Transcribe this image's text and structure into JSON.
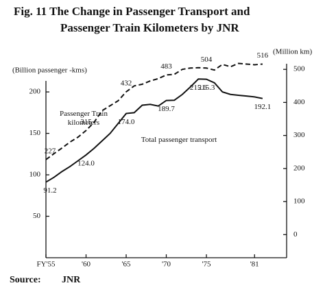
{
  "chart_data": {
    "type": "line",
    "title_lines": [
      "Fig. 11  The Change in Passenger Transport and",
      "Passenger Train Kilometers by JNR"
    ],
    "y_label": "(Billion passenger -kms)",
    "y2_label": "(Million km)",
    "source_label": "Source:",
    "source": "JNR",
    "x": [
      1955,
      1956,
      1957,
      1958,
      1959,
      1960,
      1961,
      1962,
      1963,
      1964,
      1965,
      1966,
      1967,
      1968,
      1969,
      1970,
      1971,
      1972,
      1973,
      1974,
      1975,
      1976,
      1977,
      1978,
      1979,
      1980,
      1981,
      1982
    ],
    "xlim": [
      1955,
      1985
    ],
    "xticks": [
      {
        "value": 1955,
        "label": "FY'55"
      },
      {
        "value": 1960,
        "label": "'60"
      },
      {
        "value": 1965,
        "label": "'65"
      },
      {
        "value": 1970,
        "label": "'70"
      },
      {
        "value": 1975,
        "label": "'75"
      },
      {
        "value": 1981,
        "label": "'81"
      }
    ],
    "ylim": [
      0,
      234
    ],
    "yticks": [
      50,
      100,
      150,
      200
    ],
    "y2lim": [
      -70,
      517
    ],
    "y2ticks": [
      0,
      100,
      200,
      300,
      400,
      500
    ],
    "series": [
      {
        "name": "Passenger Train kilometers",
        "color": "#111111",
        "dash": true,
        "axis": "y2",
        "values": [
          227,
          245,
          262,
          280,
          295,
          315,
          340,
          375,
          390,
          405,
          432,
          450,
          455,
          465,
          472,
          483,
          485,
          500,
          504,
          505,
          504,
          498,
          515,
          508,
          518,
          516,
          514,
          516
        ],
        "value_labels": [
          "227",
          null,
          null,
          null,
          null,
          "315",
          null,
          null,
          null,
          null,
          "432",
          null,
          null,
          null,
          null,
          "483",
          null,
          null,
          null,
          null,
          "504",
          null,
          null,
          null,
          null,
          null,
          null,
          "516"
        ]
      },
      {
        "name": "Total passenger transport",
        "color": "#111111",
        "dash": false,
        "values": [
          91.2,
          97,
          104,
          110,
          117,
          124.0,
          132,
          141,
          150,
          162,
          174.0,
          175,
          184,
          185,
          183,
          189.7,
          190,
          197,
          206,
          215.6,
          215.3,
          211,
          200,
          197,
          196,
          195,
          194,
          192.1
        ],
        "value_labels": [
          "91.2",
          null,
          null,
          null,
          null,
          "124.0",
          null,
          null,
          null,
          null,
          "174.0",
          null,
          null,
          null,
          null,
          "189.7",
          null,
          null,
          null,
          "215.6",
          "215.3",
          null,
          null,
          null,
          null,
          null,
          null,
          "192.1"
        ]
      }
    ]
  }
}
